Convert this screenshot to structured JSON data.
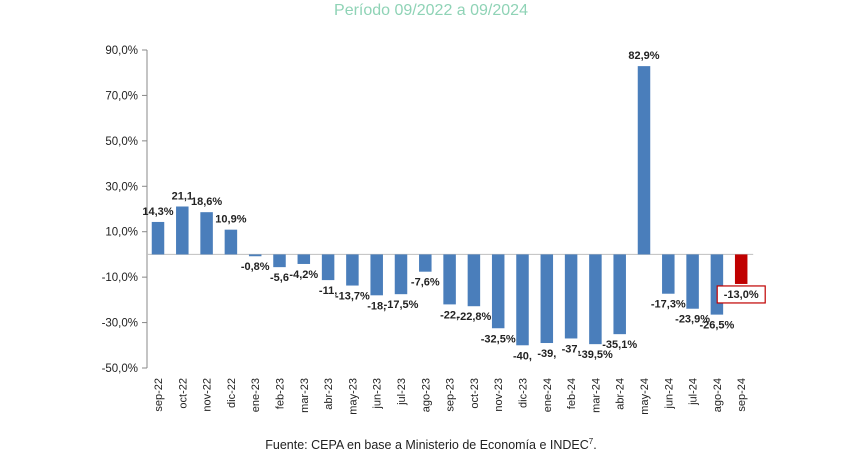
{
  "chart_data": {
    "type": "bar",
    "title": "Período 09/2022 a 09/2024",
    "categories": [
      "sep-22",
      "oct-22",
      "nov-22",
      "dic-22",
      "ene-23",
      "feb-23",
      "mar-23",
      "abr-23",
      "may-23",
      "jun-23",
      "jul-23",
      "ago-23",
      "sep-23",
      "oct-23",
      "nov-23",
      "dic-23",
      "ene-24",
      "feb-24",
      "mar-24",
      "abr-24",
      "may-24",
      "jun-24",
      "jul-24",
      "ago-24",
      "sep-24"
    ],
    "values": [
      14.3,
      21.1,
      18.6,
      10.9,
      -0.8,
      -5.6,
      -4.2,
      -11.3,
      -13.7,
      -18.0,
      -17.5,
      -7.6,
      -22.0,
      -22.8,
      -32.5,
      -40.0,
      -39.0,
      -37.0,
      -39.5,
      -35.1,
      82.9,
      -17.3,
      -23.9,
      -26.5,
      -13.0
    ],
    "data_labels": [
      "14,3%",
      "21,1",
      "18,6%",
      "10,9%",
      "-0,8%",
      "-5,6",
      "-4,2%",
      "-11,",
      "-13,7%",
      "-18,",
      "-17,5%",
      "-7,6%",
      "-22,",
      "-22,8%",
      "-32,5%",
      "-40,",
      "-39,",
      "-37,",
      "-39,5%",
      "-35,1%",
      "82,9%",
      "-17,3%",
      "-23,9%",
      "-26,5%",
      "-13,0%"
    ],
    "ylim": [
      -50,
      90
    ],
    "yticks": [
      90,
      70,
      50,
      30,
      10,
      -10,
      -30,
      -50
    ],
    "ytick_labels": [
      "90,0%",
      "70,0%",
      "50,0%",
      "30,0%",
      "10,0%",
      "-10,0%",
      "-30,0%",
      "-50,0%"
    ],
    "highlight_index": 24,
    "colors": {
      "bar": "#4a7ebb",
      "highlight": "#c00000",
      "axis": "#888888"
    }
  },
  "source": {
    "text": "Fuente: CEPA en base a Ministerio de Economía e INDEC",
    "superscript": "7",
    "end": "."
  }
}
